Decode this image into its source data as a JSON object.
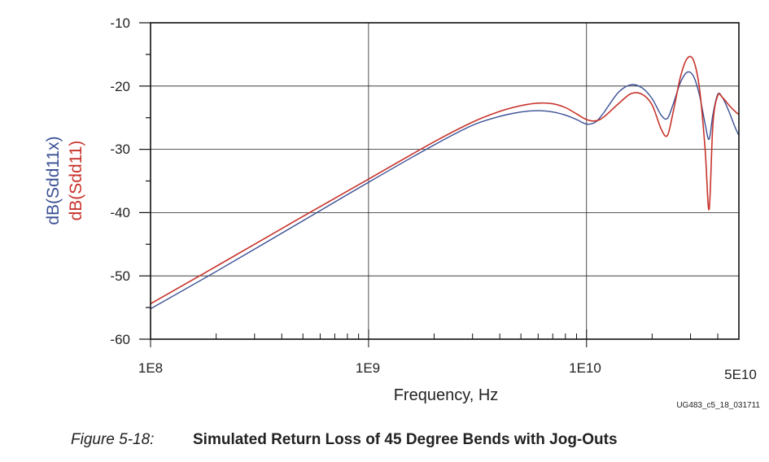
{
  "chart_data": {
    "type": "line",
    "x_scale": "log",
    "xlim": [
      100000000,
      50000000000
    ],
    "ylim": [
      -60,
      -10
    ],
    "grid": true,
    "xlabel": "Frequency, Hz",
    "ylabels": [
      "dB(Sdd11x)",
      "dB(Sdd11)"
    ],
    "x_tick_labels": [
      "1E8",
      "1E9",
      "1E10",
      "5E10"
    ],
    "y_tick_labels": [
      "-10",
      "-20",
      "-30",
      "-40",
      "-50",
      "-60"
    ],
    "series": [
      {
        "name": "dB(Sdd11x)",
        "color": "#3a4f94",
        "x": [
          100000000,
          200000000,
          500000000,
          1000000000,
          2000000000,
          3000000000,
          4000000000,
          5000000000,
          6000000000,
          7000000000,
          8000000000,
          9000000000,
          10000000000,
          11000000000,
          12000000000,
          14000000000,
          16000000000,
          18000000000,
          20000000000,
          22000000000,
          23500000000,
          25000000000,
          27000000000,
          29000000000,
          31000000000,
          33000000000,
          35000000000,
          36500000000,
          38000000000,
          40000000000,
          42000000000,
          45000000000,
          48000000000,
          50000000000
        ],
        "y": [
          -55.2,
          -49.3,
          -41.3,
          -35.2,
          -29.3,
          -26.2,
          -24.8,
          -24.1,
          -23.9,
          -24.1,
          -24.6,
          -25.3,
          -26.0,
          -25.7,
          -24.2,
          -21.0,
          -19.8,
          -20.3,
          -22.0,
          -24.6,
          -25.1,
          -22.8,
          -19.4,
          -17.8,
          -18.5,
          -21.5,
          -26.0,
          -28.4,
          -24.5,
          -21.3,
          -21.8,
          -24.0,
          -26.5,
          -27.8
        ]
      },
      {
        "name": "dB(Sdd11)",
        "color": "#c8332b",
        "x": [
          100000000,
          200000000,
          500000000,
          1000000000,
          2000000000,
          3000000000,
          4000000000,
          5000000000,
          6000000000,
          7000000000,
          8000000000,
          9000000000,
          10000000000,
          11000000000,
          12000000000,
          14000000000,
          16000000000,
          18000000000,
          20000000000,
          22000000000,
          23500000000,
          25000000000,
          27000000000,
          29000000000,
          31000000000,
          33000000000,
          35000000000,
          36500000000,
          38000000000,
          40000000000,
          42000000000,
          45000000000,
          48000000000,
          50000000000
        ],
        "y": [
          -54.4,
          -48.5,
          -40.6,
          -34.7,
          -28.8,
          -25.7,
          -24.0,
          -23.1,
          -22.7,
          -22.8,
          -23.4,
          -24.4,
          -25.3,
          -25.5,
          -24.9,
          -22.8,
          -21.2,
          -21.3,
          -23.0,
          -26.8,
          -27.8,
          -24.0,
          -18.5,
          -15.6,
          -16.0,
          -20.5,
          -30.0,
          -39.5,
          -26.0,
          -21.5,
          -21.8,
          -23.0,
          -24.0,
          -24.5
        ]
      }
    ]
  },
  "figure_id": "UG483_c5_18_031711",
  "caption": {
    "number": "Figure 5-18:",
    "title": "Simulated Return Loss of 45 Degree Bends with Jog-Outs"
  }
}
